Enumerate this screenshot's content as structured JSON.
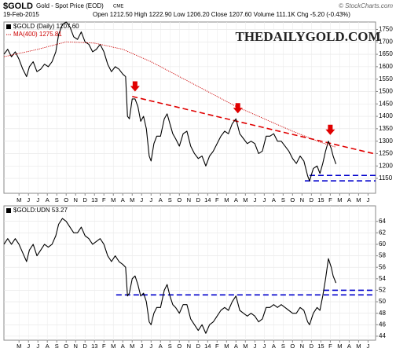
{
  "chart_data": [
    {
      "type": "line",
      "title": "$GOLD",
      "subtitle": "Gold - Spot Price (EOD)",
      "exchange": "CME",
      "date": "19-Feb-2015",
      "quote": "Open 1212.50 High 1222.90 Low 1206.20 Close 1207.60 Volume 111.1K Chg -5.20 (-0.43%)",
      "source": "© StockCharts.com",
      "watermark": "THEDAILYGOLD.COM",
      "x": [
        2.4,
        2.8,
        3.2,
        3.6,
        4.0,
        4.4,
        4.8,
        5.1,
        5.5,
        5.9,
        6.3,
        6.7,
        7.1,
        7.5,
        7.9,
        8.2,
        8.6,
        9.0,
        9.4,
        9.8,
        10.2,
        10.6,
        11.0,
        11.4,
        11.8,
        12.2,
        12.6,
        13.0,
        13.4,
        13.8,
        14.2,
        14.6,
        15.0,
        15.3,
        15.5,
        15.7,
        16.0,
        16.3,
        16.6,
        16.9,
        17.2,
        17.5,
        17.8,
        18.0,
        18.3,
        18.6,
        19.0,
        19.4,
        19.7,
        20.0,
        20.3,
        20.6,
        21.0,
        21.4,
        21.8,
        22.2,
        22.6,
        23.0,
        23.4,
        23.8,
        24.2,
        24.6,
        25.0,
        25.4,
        25.8,
        26.2,
        26.6,
        27.0,
        27.4,
        27.8,
        28.2,
        28.6,
        29.0,
        29.4,
        29.8,
        30.2,
        30.6,
        31.0,
        31.4,
        31.8,
        32.2,
        32.6,
        33.0,
        33.4,
        33.8,
        34.2,
        34.6,
        34.8,
        35.2,
        35.6,
        35.9,
        36.2,
        36.5,
        36.8,
        37.1,
        37.3,
        37.6
      ],
      "series": [
        {
          "name": "$GOLD (Daily) 1207.60",
          "color": "#000000",
          "values": [
            1650,
            1670,
            1640,
            1660,
            1630,
            1590,
            1560,
            1600,
            1620,
            1580,
            1590,
            1610,
            1600,
            1620,
            1660,
            1730,
            1770,
            1780,
            1760,
            1720,
            1710,
            1740,
            1700,
            1690,
            1660,
            1670,
            1690,
            1660,
            1610,
            1580,
            1600,
            1590,
            1570,
            1560,
            1400,
            1390,
            1470,
            1470,
            1440,
            1380,
            1400,
            1350,
            1240,
            1220,
            1290,
            1320,
            1320,
            1390,
            1410,
            1370,
            1330,
            1310,
            1280,
            1330,
            1340,
            1280,
            1250,
            1230,
            1240,
            1200,
            1240,
            1260,
            1290,
            1320,
            1340,
            1330,
            1370,
            1390,
            1330,
            1310,
            1290,
            1300,
            1290,
            1250,
            1260,
            1320,
            1320,
            1330,
            1300,
            1300,
            1280,
            1260,
            1230,
            1210,
            1240,
            1220,
            1160,
            1140,
            1190,
            1200,
            1170,
            1210,
            1260,
            1300,
            1270,
            1240,
            1207.6
          ]
        },
        {
          "name": "MA(400) 1275.81",
          "color": "#cc0000",
          "dotted": true,
          "x": [
            2.4,
            6,
            9,
            12,
            15,
            18,
            21,
            24,
            27,
            30,
            33,
            36,
            37.6
          ],
          "values": [
            1640,
            1670,
            1700,
            1695,
            1670,
            1620,
            1560,
            1500,
            1440,
            1390,
            1340,
            1295,
            1275.81
          ]
        }
      ],
      "lines": [
        {
          "x": [
            16.0,
            41.8
          ],
          "values": [
            1480,
            1248
          ],
          "color": "#e00000"
        },
        {
          "x": [
            34.8,
            41.8
          ],
          "values": [
            1162,
            1162
          ],
          "color": "#0000cc"
        },
        {
          "x": [
            34.3,
            41.8
          ],
          "values": [
            1140,
            1140
          ],
          "color": "#0000cc"
        }
      ],
      "arrows": {
        "x": [
          16.3,
          27.2,
          37.0
        ],
        "values": [
          1500,
          1412,
          1325
        ],
        "color": "#e00000"
      },
      "xlim": [
        2.4,
        41.8
      ],
      "ylim": [
        1090,
        1780
      ],
      "yticks": [
        1150,
        1200,
        1250,
        1300,
        1350,
        1400,
        1450,
        1500,
        1550,
        1600,
        1650,
        1700,
        1750
      ],
      "xticks": [
        {
          "value": 4,
          "label": "M"
        },
        {
          "value": 5,
          "label": "J"
        },
        {
          "value": 6,
          "label": "J"
        },
        {
          "value": 7,
          "label": "A"
        },
        {
          "value": 8,
          "label": "S"
        },
        {
          "value": 9,
          "label": "O"
        },
        {
          "value": 10,
          "label": "N"
        },
        {
          "value": 11,
          "label": "D"
        },
        {
          "value": 12,
          "label": "13"
        },
        {
          "value": 13,
          "label": "F"
        },
        {
          "value": 14,
          "label": "M"
        },
        {
          "value": 15,
          "label": "A"
        },
        {
          "value": 16,
          "label": "M"
        },
        {
          "value": 17,
          "label": "J"
        },
        {
          "value": 18,
          "label": "J"
        },
        {
          "value": 19,
          "label": "A"
        },
        {
          "value": 20,
          "label": "S"
        },
        {
          "value": 21,
          "label": "O"
        },
        {
          "value": 22,
          "label": "N"
        },
        {
          "value": 23,
          "label": "D"
        },
        {
          "value": 24,
          "label": "14"
        },
        {
          "value": 25,
          "label": "F"
        },
        {
          "value": 26,
          "label": "M"
        },
        {
          "value": 27,
          "label": "A"
        },
        {
          "value": 28,
          "label": "M"
        },
        {
          "value": 29,
          "label": "J"
        },
        {
          "value": 30,
          "label": "J"
        },
        {
          "value": 31,
          "label": "A"
        },
        {
          "value": 32,
          "label": "S"
        },
        {
          "value": 33,
          "label": "O"
        },
        {
          "value": 34,
          "label": "N"
        },
        {
          "value": 35,
          "label": "D"
        },
        {
          "value": 36,
          "label": "15"
        },
        {
          "value": 37,
          "label": "F"
        },
        {
          "value": 38,
          "label": "M"
        },
        {
          "value": 39,
          "label": "A"
        },
        {
          "value": 40,
          "label": "M"
        },
        {
          "value": 41,
          "label": "J"
        }
      ],
      "grid": true
    },
    {
      "type": "line",
      "x": [
        2.4,
        2.8,
        3.2,
        3.6,
        4.0,
        4.4,
        4.8,
        5.1,
        5.5,
        5.9,
        6.3,
        6.7,
        7.1,
        7.5,
        7.9,
        8.2,
        8.6,
        9.0,
        9.4,
        9.8,
        10.2,
        10.6,
        11.0,
        11.4,
        11.8,
        12.2,
        12.6,
        13.0,
        13.4,
        13.8,
        14.2,
        14.6,
        15.0,
        15.3,
        15.5,
        15.7,
        16.0,
        16.3,
        16.6,
        16.9,
        17.2,
        17.5,
        17.8,
        18.0,
        18.3,
        18.6,
        19.0,
        19.4,
        19.7,
        20.0,
        20.3,
        20.6,
        21.0,
        21.4,
        21.8,
        22.2,
        22.6,
        23.0,
        23.4,
        23.8,
        24.2,
        24.6,
        25.0,
        25.4,
        25.8,
        26.2,
        26.6,
        27.0,
        27.4,
        27.8,
        28.2,
        28.6,
        29.0,
        29.4,
        29.8,
        30.2,
        30.6,
        31.0,
        31.4,
        31.8,
        32.2,
        32.6,
        33.0,
        33.4,
        33.8,
        34.2,
        34.6,
        34.8,
        35.2,
        35.6,
        35.9,
        36.2,
        36.5,
        36.8,
        37.1,
        37.3,
        37.6
      ],
      "series": [
        {
          "name": "$GOLD:UDN 53.27",
          "color": "#000000",
          "values": [
            60,
            61,
            60,
            61,
            60,
            58.5,
            57,
            59,
            60,
            58,
            59,
            60,
            59.5,
            60,
            61.5,
            63.5,
            64.5,
            64,
            63,
            62,
            62,
            63,
            61.5,
            61,
            60,
            60.5,
            61,
            60,
            58,
            57,
            58,
            57,
            56.5,
            56,
            51,
            51.5,
            54,
            54.5,
            53,
            51,
            51.5,
            50,
            46.5,
            46,
            48,
            49,
            49,
            52,
            53,
            51,
            49.5,
            49,
            48,
            49.5,
            49.5,
            47,
            46,
            45,
            46,
            44.5,
            46,
            46.5,
            47.5,
            48.5,
            49,
            48.5,
            50,
            51,
            48.5,
            48,
            47.5,
            48,
            47.5,
            46.5,
            47,
            49,
            49,
            49.5,
            49,
            49.5,
            49,
            48.5,
            48,
            48,
            49,
            48.5,
            46.5,
            46,
            48,
            49,
            48.5,
            51,
            54,
            57.5,
            56,
            54.5,
            53.27
          ]
        }
      ],
      "lines": [
        {
          "x": [
            14.3,
            41.8
          ],
          "values": [
            51.2,
            51.2
          ],
          "color": "#0000cc"
        },
        {
          "x": [
            36.3,
            41.8
          ],
          "values": [
            52,
            52
          ],
          "color": "#0000cc"
        }
      ],
      "xlim": [
        2.4,
        41.8
      ],
      "ylim": [
        43.3,
        66.7
      ],
      "yticks": [
        44,
        46,
        48,
        50,
        52,
        54,
        56,
        58,
        60,
        62,
        64
      ],
      "xticks": [
        {
          "value": 4,
          "label": "M"
        },
        {
          "value": 5,
          "label": "J"
        },
        {
          "value": 6,
          "label": "J"
        },
        {
          "value": 7,
          "label": "A"
        },
        {
          "value": 8,
          "label": "S"
        },
        {
          "value": 9,
          "label": "O"
        },
        {
          "value": 10,
          "label": "N"
        },
        {
          "value": 11,
          "label": "D"
        },
        {
          "value": 12,
          "label": "13"
        },
        {
          "value": 13,
          "label": "F"
        },
        {
          "value": 14,
          "label": "M"
        },
        {
          "value": 15,
          "label": "A"
        },
        {
          "value": 16,
          "label": "M"
        },
        {
          "value": 17,
          "label": "J"
        },
        {
          "value": 18,
          "label": "J"
        },
        {
          "value": 19,
          "label": "A"
        },
        {
          "value": 20,
          "label": "S"
        },
        {
          "value": 21,
          "label": "O"
        },
        {
          "value": 22,
          "label": "N"
        },
        {
          "value": 23,
          "label": "D"
        },
        {
          "value": 24,
          "label": "14"
        },
        {
          "value": 25,
          "label": "F"
        },
        {
          "value": 26,
          "label": "M"
        },
        {
          "value": 27,
          "label": "A"
        },
        {
          "value": 28,
          "label": "M"
        },
        {
          "value": 29,
          "label": "J"
        },
        {
          "value": 30,
          "label": "J"
        },
        {
          "value": 31,
          "label": "A"
        },
        {
          "value": 32,
          "label": "S"
        },
        {
          "value": 33,
          "label": "O"
        },
        {
          "value": 34,
          "label": "N"
        },
        {
          "value": 35,
          "label": "D"
        },
        {
          "value": 36,
          "label": "15"
        },
        {
          "value": 37,
          "label": "F"
        },
        {
          "value": 38,
          "label": "M"
        },
        {
          "value": 39,
          "label": "A"
        },
        {
          "value": 40,
          "label": "M"
        },
        {
          "value": 41,
          "label": "J"
        }
      ],
      "grid": true
    }
  ]
}
